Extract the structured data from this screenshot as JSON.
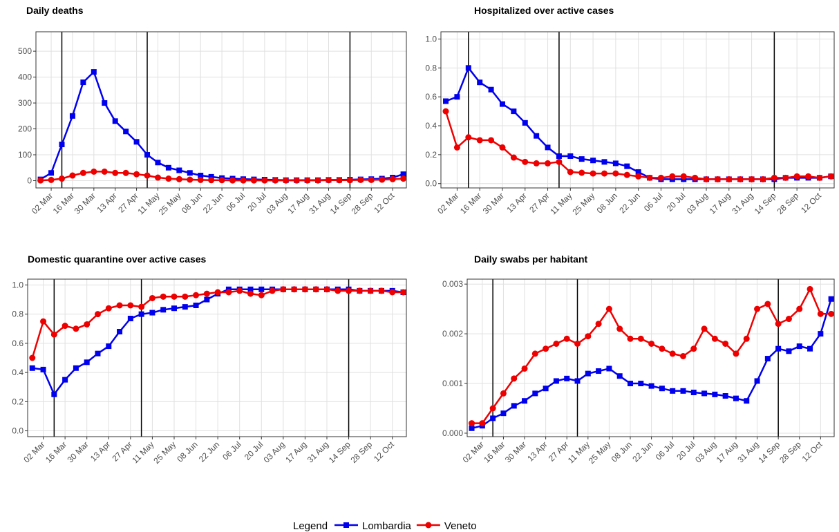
{
  "legend": {
    "title": "Legend"
  },
  "chart_data": [
    {
      "type": "line",
      "title": "Daily deaths",
      "x": [
        "24 Feb",
        "02 Mar",
        "09 Mar",
        "16 Mar",
        "23 Mar",
        "30 Mar",
        "06 Apr",
        "13 Apr",
        "20 Apr",
        "27 Apr",
        "04 May",
        "11 May",
        "18 May",
        "25 May",
        "01 Jun",
        "08 Jun",
        "15 Jun",
        "22 Jun",
        "29 Jun",
        "06 Jul",
        "13 Jul",
        "20 Jul",
        "27 Jul",
        "03 Aug",
        "10 Aug",
        "17 Aug",
        "24 Aug",
        "31 Aug",
        "07 Sep",
        "14 Sep",
        "21 Sep",
        "28 Sep",
        "05 Oct",
        "12 Oct",
        "19 Oct"
      ],
      "series": [
        {
          "name": "Lombardia",
          "color": "#0000ee",
          "values": [
            5,
            30,
            140,
            250,
            380,
            420,
            300,
            230,
            190,
            150,
            100,
            70,
            50,
            40,
            30,
            20,
            15,
            10,
            8,
            6,
            5,
            4,
            3,
            2,
            2,
            2,
            2,
            3,
            3,
            4,
            5,
            6,
            8,
            12,
            25
          ]
        },
        {
          "name": "Veneto",
          "color": "#ee0000",
          "values": [
            1,
            3,
            8,
            20,
            30,
            35,
            35,
            30,
            30,
            25,
            20,
            12,
            8,
            6,
            4,
            3,
            2,
            2,
            1,
            1,
            1,
            1,
            1,
            1,
            1,
            1,
            1,
            2,
            2,
            2,
            3,
            3,
            4,
            6,
            8
          ]
        }
      ],
      "xlim": [
        "21 Feb",
        "21 Oct"
      ],
      "xticks": [
        "02 Mar",
        "16 Mar",
        "30 Mar",
        "13 Apr",
        "27 Apr",
        "11 May",
        "25 May",
        "08 Jun",
        "22 Jun",
        "06 Jul",
        "20 Jul",
        "03 Aug",
        "17 Aug",
        "31 Aug",
        "14 Sep",
        "28 Sep",
        "12 Oct"
      ],
      "vlines": [
        "09 Mar",
        "04 May",
        "14 Sep"
      ],
      "ylim": [
        -28,
        575
      ],
      "yticks": [
        0,
        100,
        200,
        300,
        400,
        500
      ],
      "grid": true
    },
    {
      "type": "line",
      "title": "Hospitalized over active cases",
      "x": [
        "24 Feb",
        "02 Mar",
        "09 Mar",
        "16 Mar",
        "23 Mar",
        "30 Mar",
        "06 Apr",
        "13 Apr",
        "20 Apr",
        "27 Apr",
        "04 May",
        "11 May",
        "18 May",
        "25 May",
        "01 Jun",
        "08 Jun",
        "15 Jun",
        "22 Jun",
        "29 Jun",
        "06 Jul",
        "13 Jul",
        "20 Jul",
        "27 Jul",
        "03 Aug",
        "10 Aug",
        "17 Aug",
        "24 Aug",
        "31 Aug",
        "07 Sep",
        "14 Sep",
        "21 Sep",
        "28 Sep",
        "05 Oct",
        "12 Oct",
        "19 Oct"
      ],
      "series": [
        {
          "name": "Lombardia",
          "color": "#0000ee",
          "values": [
            0.57,
            0.6,
            0.8,
            0.7,
            0.65,
            0.55,
            0.5,
            0.42,
            0.33,
            0.25,
            0.19,
            0.19,
            0.17,
            0.16,
            0.15,
            0.14,
            0.12,
            0.08,
            0.04,
            0.03,
            0.03,
            0.03,
            0.03,
            0.03,
            0.03,
            0.03,
            0.03,
            0.03,
            0.03,
            0.03,
            0.04,
            0.04,
            0.04,
            0.04,
            0.05
          ]
        },
        {
          "name": "Veneto",
          "color": "#ee0000",
          "values": [
            0.5,
            0.25,
            0.32,
            0.3,
            0.3,
            0.25,
            0.18,
            0.15,
            0.14,
            0.14,
            0.15,
            0.08,
            0.075,
            0.07,
            0.07,
            0.07,
            0.06,
            0.05,
            0.04,
            0.04,
            0.05,
            0.05,
            0.04,
            0.03,
            0.03,
            0.03,
            0.03,
            0.03,
            0.03,
            0.04,
            0.04,
            0.05,
            0.05,
            0.04,
            0.05
          ]
        }
      ],
      "xlim": [
        "21 Feb",
        "21 Oct"
      ],
      "xticks": [
        "02 Mar",
        "16 Mar",
        "30 Mar",
        "13 Apr",
        "27 Apr",
        "11 May",
        "25 May",
        "08 Jun",
        "22 Jun",
        "06 Jul",
        "20 Jul",
        "03 Aug",
        "17 Aug",
        "31 Aug",
        "14 Sep",
        "28 Sep",
        "12 Oct"
      ],
      "vlines": [
        "09 Mar",
        "04 May",
        "14 Sep"
      ],
      "ylim": [
        -0.03,
        1.05
      ],
      "yticks": [
        {
          "value": 0,
          "label": "0.0"
        },
        0.2,
        0.4,
        0.6,
        0.8,
        {
          "value": 1,
          "label": "1.0"
        }
      ],
      "grid": true
    },
    {
      "type": "line",
      "title": "Domestic quarantine over active cases",
      "x": [
        "24 Feb",
        "02 Mar",
        "09 Mar",
        "16 Mar",
        "23 Mar",
        "30 Mar",
        "06 Apr",
        "13 Apr",
        "20 Apr",
        "27 Apr",
        "04 May",
        "11 May",
        "18 May",
        "25 May",
        "01 Jun",
        "08 Jun",
        "15 Jun",
        "22 Jun",
        "29 Jun",
        "06 Jul",
        "13 Jul",
        "20 Jul",
        "27 Jul",
        "03 Aug",
        "10 Aug",
        "17 Aug",
        "24 Aug",
        "31 Aug",
        "07 Sep",
        "14 Sep",
        "21 Sep",
        "28 Sep",
        "05 Oct",
        "12 Oct",
        "19 Oct"
      ],
      "series": [
        {
          "name": "Lombardia",
          "color": "#0000ee",
          "values": [
            0.43,
            0.42,
            0.25,
            0.35,
            0.43,
            0.47,
            0.53,
            0.58,
            0.68,
            0.77,
            0.8,
            0.81,
            0.83,
            0.84,
            0.85,
            0.86,
            0.9,
            0.94,
            0.97,
            0.97,
            0.97,
            0.97,
            0.97,
            0.97,
            0.97,
            0.97,
            0.97,
            0.97,
            0.97,
            0.97,
            0.96,
            0.96,
            0.96,
            0.96,
            0.95
          ]
        },
        {
          "name": "Veneto",
          "color": "#ee0000",
          "values": [
            0.5,
            0.75,
            0.66,
            0.72,
            0.7,
            0.73,
            0.8,
            0.84,
            0.86,
            0.86,
            0.85,
            0.91,
            0.92,
            0.92,
            0.92,
            0.93,
            0.94,
            0.95,
            0.95,
            0.96,
            0.94,
            0.93,
            0.96,
            0.97,
            0.97,
            0.97,
            0.97,
            0.97,
            0.96,
            0.96,
            0.96,
            0.96,
            0.96,
            0.95,
            0.95
          ]
        }
      ],
      "xlim": [
        "21 Feb",
        "21 Oct"
      ],
      "xticks": [
        "02 Mar",
        "16 Mar",
        "30 Mar",
        "13 Apr",
        "27 Apr",
        "11 May",
        "25 May",
        "08 Jun",
        "22 Jun",
        "06 Jul",
        "20 Jul",
        "03 Aug",
        "17 Aug",
        "31 Aug",
        "14 Sep",
        "28 Sep",
        "12 Oct"
      ],
      "vlines": [
        "09 Mar",
        "04 May",
        "14 Sep"
      ],
      "ylim": [
        -0.04,
        1.04
      ],
      "yticks": [
        {
          "value": 0,
          "label": "0.0"
        },
        0.2,
        0.4,
        0.6,
        0.8,
        {
          "value": 1,
          "label": "1.0"
        }
      ],
      "grid": true
    },
    {
      "type": "line",
      "title": "Daily swabs per habitant",
      "x": [
        "24 Feb",
        "02 Mar",
        "09 Mar",
        "16 Mar",
        "23 Mar",
        "30 Mar",
        "06 Apr",
        "13 Apr",
        "20 Apr",
        "27 Apr",
        "04 May",
        "11 May",
        "18 May",
        "25 May",
        "01 Jun",
        "08 Jun",
        "15 Jun",
        "22 Jun",
        "29 Jun",
        "06 Jul",
        "13 Jul",
        "20 Jul",
        "27 Jul",
        "03 Aug",
        "10 Aug",
        "17 Aug",
        "24 Aug",
        "31 Aug",
        "07 Sep",
        "14 Sep",
        "21 Sep",
        "28 Sep",
        "05 Oct",
        "12 Oct",
        "19 Oct"
      ],
      "series": [
        {
          "name": "Lombardia",
          "color": "#0000ee",
          "values": [
            0.0001,
            0.00015,
            0.0003,
            0.0004,
            0.00055,
            0.00065,
            0.0008,
            0.0009,
            0.00105,
            0.0011,
            0.00105,
            0.0012,
            0.00125,
            0.0013,
            0.00115,
            0.001,
            0.001,
            0.00095,
            0.0009,
            0.00085,
            0.00085,
            0.00082,
            0.0008,
            0.00078,
            0.00075,
            0.0007,
            0.00065,
            0.00105,
            0.0015,
            0.0017,
            0.00165,
            0.00175,
            0.0017,
            0.002,
            0.0027
          ]
        },
        {
          "name": "Veneto",
          "color": "#ee0000",
          "values": [
            0.0002,
            0.0002,
            0.0005,
            0.0008,
            0.0011,
            0.0013,
            0.0016,
            0.0017,
            0.0018,
            0.0019,
            0.0018,
            0.00195,
            0.0022,
            0.0025,
            0.0021,
            0.0019,
            0.0019,
            0.0018,
            0.0017,
            0.0016,
            0.00155,
            0.0017,
            0.0021,
            0.0019,
            0.0018,
            0.0016,
            0.0019,
            0.0025,
            0.0026,
            0.0022,
            0.0023,
            0.0025,
            0.0029,
            0.0024,
            0.0024
          ]
        }
      ],
      "xlim": [
        "21 Feb",
        "21 Oct"
      ],
      "xticks": [
        "02 Mar",
        "16 Mar",
        "30 Mar",
        "13 Apr",
        "27 Apr",
        "11 May",
        "25 May",
        "08 Jun",
        "22 Jun",
        "06 Jul",
        "20 Jul",
        "03 Aug",
        "17 Aug",
        "31 Aug",
        "14 Sep",
        "28 Sep",
        "12 Oct"
      ],
      "vlines": [
        "09 Mar",
        "04 May",
        "14 Sep"
      ],
      "ylim": [
        -7e-05,
        0.0031
      ],
      "yticks": [
        {
          "value": 0,
          "label": "0.000"
        },
        {
          "value": 0.001,
          "label": "0.001"
        },
        {
          "value": 0.002,
          "label": "0.002"
        },
        {
          "value": 0.003,
          "label": "0.003"
        }
      ],
      "grid": true
    }
  ]
}
